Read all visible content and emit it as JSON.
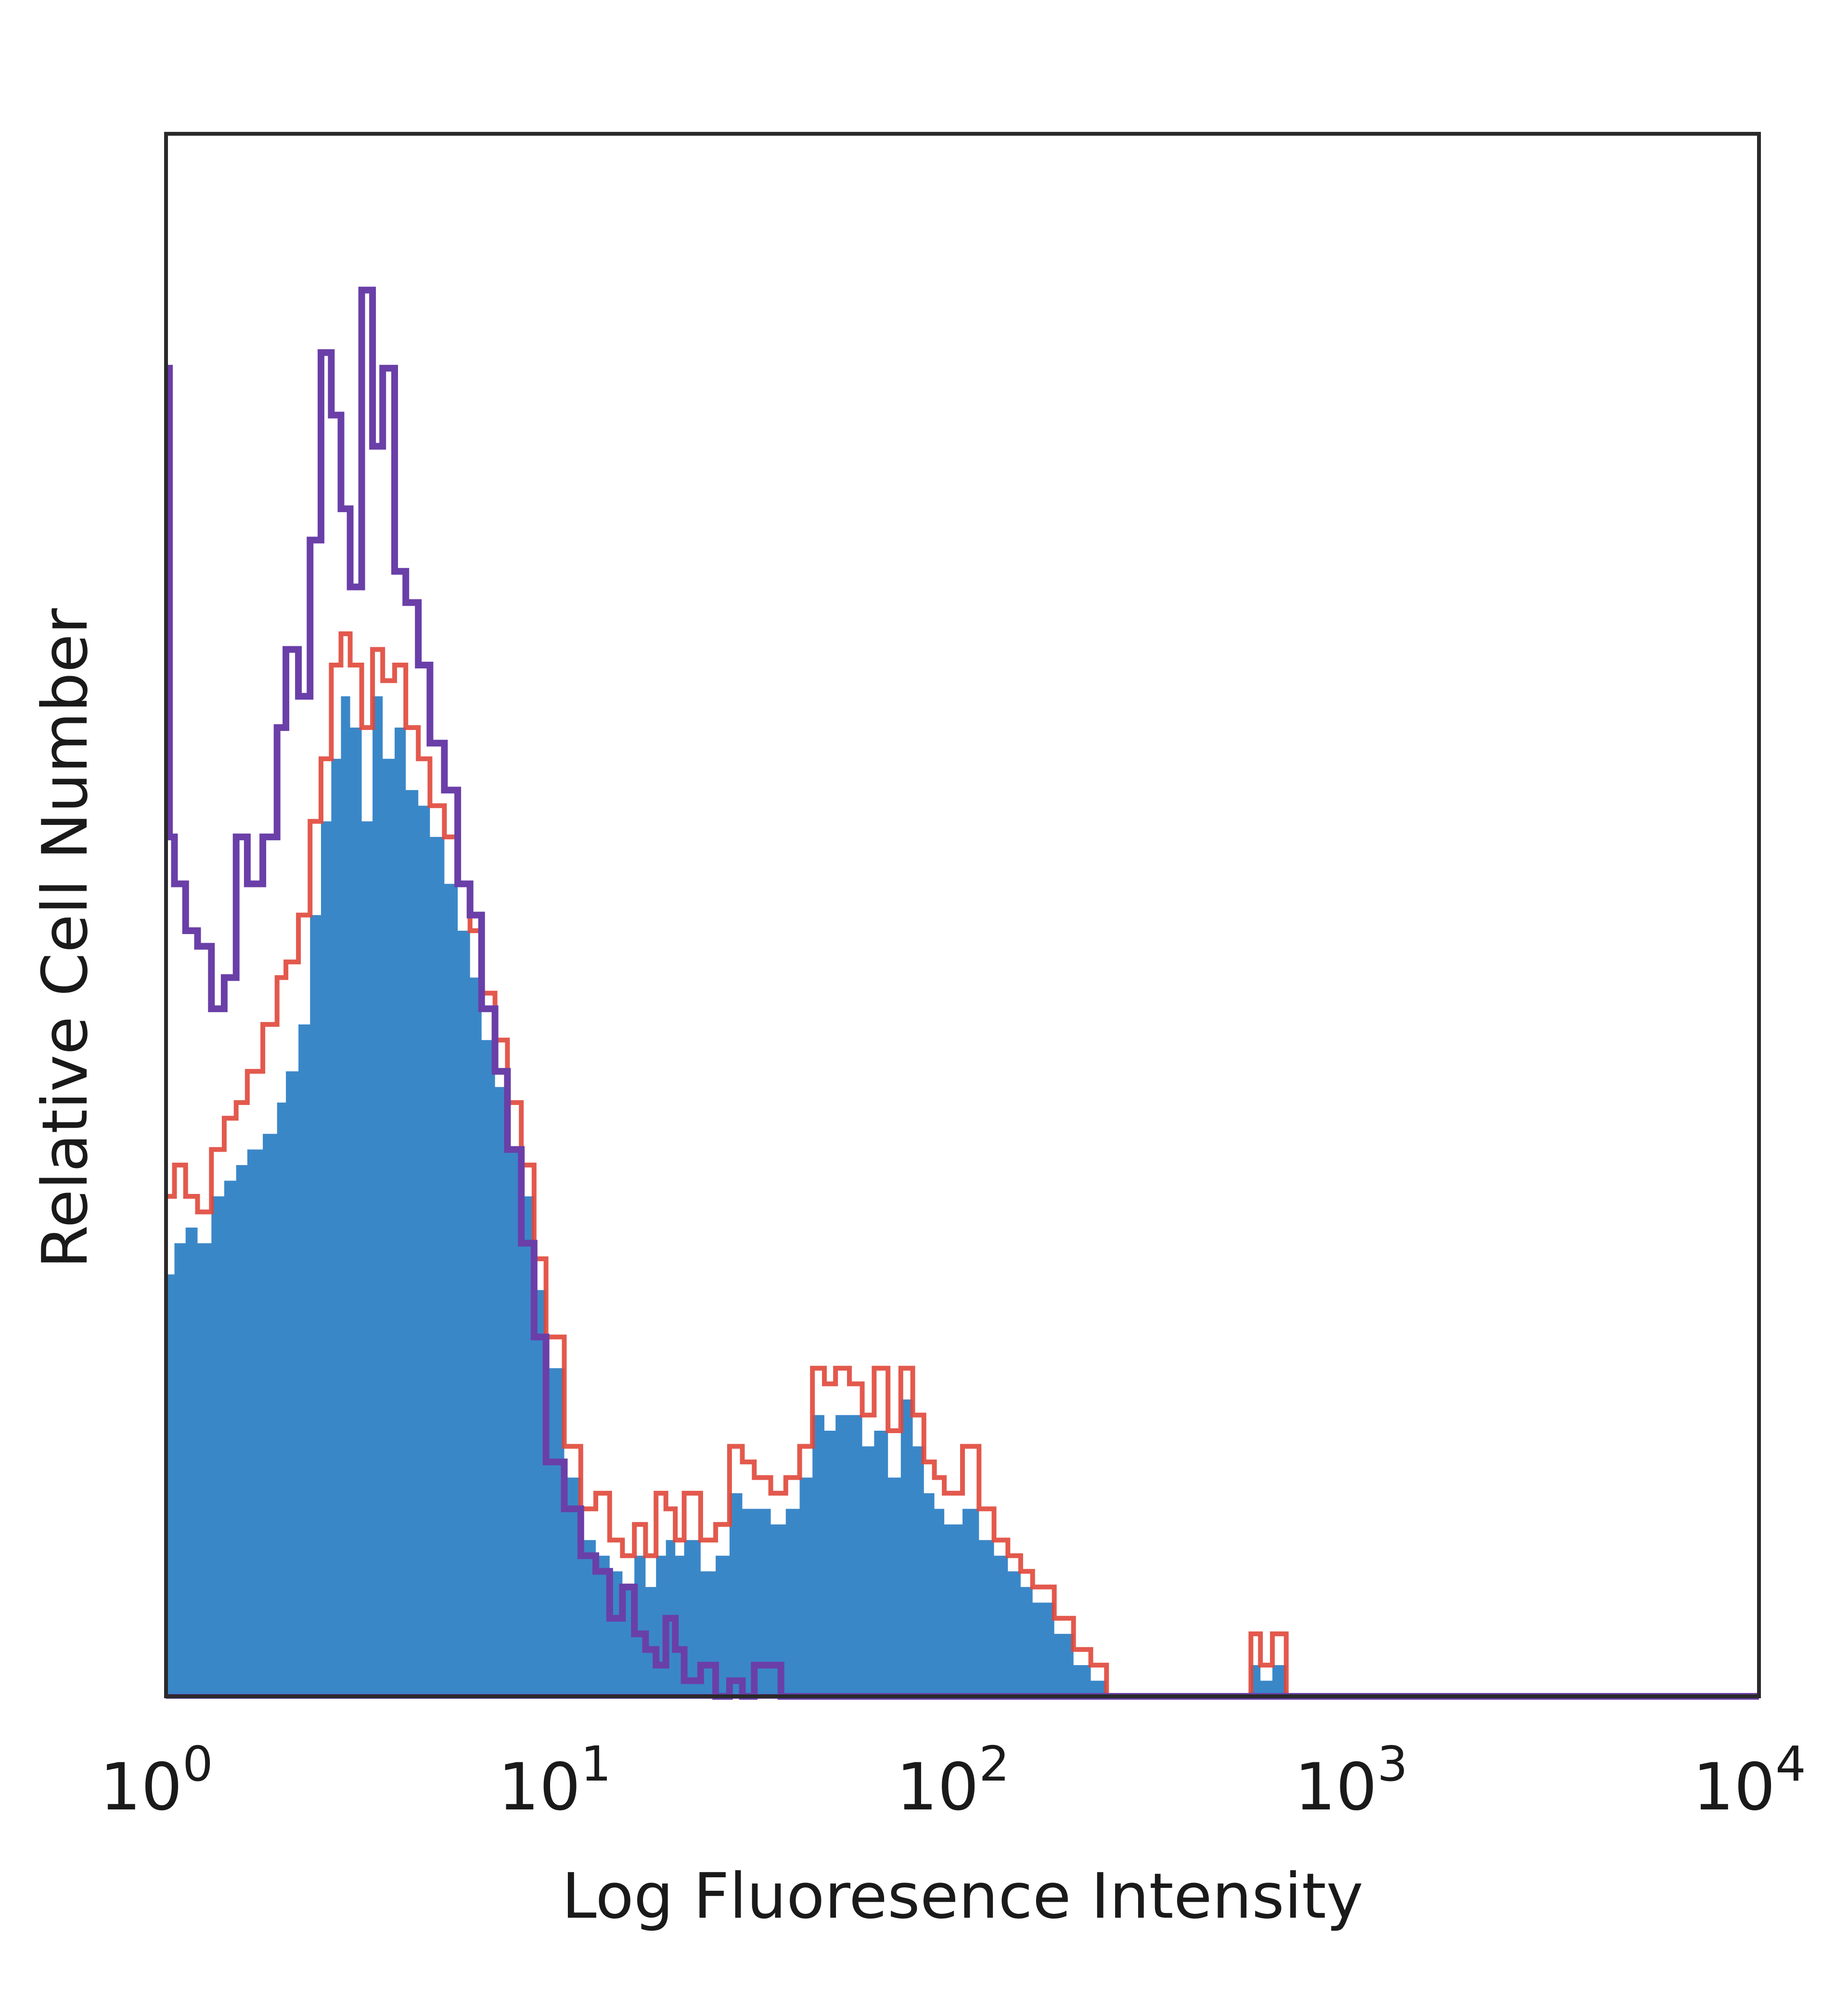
{
  "chart_data": {
    "type": "area",
    "title": "",
    "xlabel": "Log Fluoresence Intensity",
    "ylabel": "Relative Cell Number",
    "xscale": "log",
    "xlim": [
      1,
      10000
    ],
    "ylim": [
      0,
      100
    ],
    "grid": false,
    "legend": "none",
    "x_ticks": [
      {
        "base": "10",
        "exp": "0"
      },
      {
        "base": "10",
        "exp": "1"
      },
      {
        "base": "10",
        "exp": "2"
      },
      {
        "base": "10",
        "exp": "3"
      },
      {
        "base": "10",
        "exp": "4"
      }
    ],
    "series": [
      {
        "color": "#3a87c8",
        "style": "filled",
        "x": [
          1.0,
          1.05,
          1.12,
          1.2,
          1.3,
          1.4,
          1.5,
          1.6,
          1.75,
          1.9,
          2.0,
          2.15,
          2.3,
          2.45,
          2.6,
          2.75,
          2.9,
          3.1,
          3.3,
          3.5,
          3.75,
          4.0,
          4.3,
          4.6,
          5.0,
          5.4,
          5.8,
          6.2,
          6.7,
          7.2,
          7.8,
          8.4,
          9.0,
          10.0,
          11.0,
          12.0,
          13.0,
          14.0,
          15.0,
          16.0,
          17.0,
          18.0,
          19.0,
          20.0,
          22.0,
          24.0,
          26.0,
          28.0,
          30.0,
          33.0,
          36.0,
          39.0,
          42.0,
          45.0,
          48.0,
          52.0,
          56.0,
          60.0,
          65.0,
          70.0,
          75.0,
          80.0,
          85.0,
          90.0,
          100.0,
          110.0,
          120.0,
          130.0,
          140.0,
          150.0,
          170.0,
          190.0,
          210.0,
          230.0,
          250.0,
          260.0,
          300.0,
          400.0,
          480.0,
          500.0,
          530.0,
          560.0,
          600.0,
          650.0,
          1000.0,
          10000.0
        ],
        "y": [
          27,
          29,
          30,
          29,
          32,
          33,
          34,
          35,
          36,
          38,
          40,
          43,
          50,
          56,
          60,
          64,
          62,
          56,
          64,
          60,
          62,
          58,
          57,
          55,
          52,
          49,
          46,
          42,
          39,
          35,
          32,
          26,
          21,
          14,
          10,
          9,
          8,
          7,
          9,
          7,
          9,
          10,
          9,
          10,
          8,
          9,
          13,
          12,
          12,
          11,
          12,
          14,
          18,
          17,
          18,
          18,
          16,
          17,
          14,
          19,
          16,
          13,
          12,
          11,
          12,
          10,
          9,
          8,
          7,
          6,
          4,
          2,
          1,
          0,
          0,
          0,
          0,
          0,
          0,
          0,
          2,
          1,
          2,
          0,
          0,
          0
        ]
      },
      {
        "color": "#e0473a",
        "style": "line",
        "x": [
          1.0,
          1.05,
          1.12,
          1.2,
          1.3,
          1.4,
          1.5,
          1.6,
          1.75,
          1.9,
          2.0,
          2.15,
          2.3,
          2.45,
          2.6,
          2.75,
          2.9,
          3.1,
          3.3,
          3.5,
          3.75,
          4.0,
          4.3,
          4.6,
          5.0,
          5.4,
          5.8,
          6.2,
          6.7,
          7.2,
          7.8,
          8.4,
          9.0,
          10.0,
          11.0,
          12.0,
          13.0,
          14.0,
          15.0,
          16.0,
          17.0,
          18.0,
          19.0,
          20.0,
          22.0,
          24.0,
          26.0,
          28.0,
          30.0,
          33.0,
          36.0,
          39.0,
          42.0,
          45.0,
          48.0,
          52.0,
          56.0,
          60.0,
          65.0,
          70.0,
          75.0,
          80.0,
          85.0,
          90.0,
          100.0,
          110.0,
          120.0,
          130.0,
          140.0,
          150.0,
          170.0,
          190.0,
          210.0,
          230.0,
          250.0,
          260.0,
          300.0,
          400.0,
          480.0,
          500.0,
          530.0,
          560.0,
          600.0,
          650.0,
          1000.0,
          10000.0
        ],
        "y": [
          32,
          34,
          32,
          31,
          35,
          37,
          38,
          40,
          43,
          46,
          47,
          50,
          56,
          60,
          66,
          68,
          66,
          62,
          67,
          65,
          66,
          62,
          60,
          57,
          55,
          52,
          49,
          45,
          42,
          38,
          34,
          28,
          23,
          16,
          12,
          13,
          10,
          9,
          11,
          9,
          13,
          12,
          10,
          13,
          10,
          11,
          16,
          15,
          14,
          13,
          14,
          16,
          21,
          20,
          21,
          20,
          18,
          21,
          17,
          21,
          18,
          15,
          14,
          13,
          16,
          12,
          10,
          9,
          8,
          7,
          5,
          3,
          2,
          0,
          0,
          0,
          0,
          0,
          0,
          0,
          4,
          2,
          4,
          0,
          0,
          0
        ]
      },
      {
        "color": "#6a3fa8",
        "style": "line",
        "x": [
          1.0,
          1.02,
          1.05,
          1.12,
          1.2,
          1.3,
          1.4,
          1.5,
          1.6,
          1.75,
          1.9,
          2.0,
          2.15,
          2.3,
          2.45,
          2.6,
          2.75,
          2.9,
          3.1,
          3.3,
          3.5,
          3.75,
          4.0,
          4.3,
          4.6,
          5.0,
          5.4,
          5.8,
          6.2,
          6.7,
          7.2,
          7.8,
          8.4,
          9.0,
          10.0,
          11.0,
          12.0,
          13.0,
          14.0,
          15.0,
          16.0,
          17.0,
          18.0,
          19.0,
          20.0,
          22.0,
          24.0,
          26.0,
          28.0,
          30.0,
          35.0,
          40.0,
          10000.0
        ],
        "y": [
          85,
          55,
          52,
          49,
          48,
          44,
          46,
          55,
          52,
          55,
          62,
          67,
          64,
          74,
          86,
          82,
          76,
          71,
          90,
          80,
          85,
          72,
          70,
          66,
          61,
          58,
          52,
          50,
          44,
          40,
          35,
          29,
          23,
          15,
          12,
          9,
          8,
          5,
          7,
          4,
          3,
          2,
          5,
          3,
          1,
          2,
          0,
          1,
          0,
          2,
          0,
          0,
          0
        ]
      }
    ]
  }
}
